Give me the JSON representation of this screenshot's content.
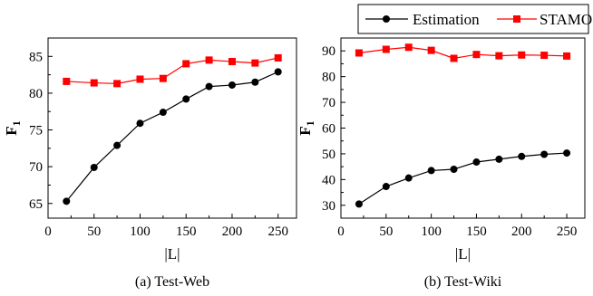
{
  "legend": {
    "entries": [
      {
        "name": "Estimation",
        "color": "#000000",
        "marker": "circle"
      },
      {
        "name": "STAMO",
        "color": "#ff0000",
        "marker": "square"
      }
    ],
    "placement": "top-right"
  },
  "chart_data": [
    {
      "type": "line",
      "title": "(a) Test-Web",
      "xlabel": "|L|",
      "ylabel": "F",
      "ylabel_subscript": "1",
      "xlim": [
        0,
        270
      ],
      "ylim": [
        63,
        87.5
      ],
      "xticks": [
        0,
        50,
        100,
        150,
        200,
        250
      ],
      "yticks": [
        65,
        70,
        75,
        80,
        85
      ],
      "x": [
        20,
        50,
        75,
        100,
        125,
        150,
        175,
        200,
        225,
        250
      ],
      "series": [
        {
          "name": "Estimation",
          "color": "#000000",
          "marker": "circle",
          "values": [
            65.3,
            69.9,
            72.9,
            75.9,
            77.4,
            79.2,
            80.9,
            81.1,
            81.5,
            82.9
          ]
        },
        {
          "name": "STAMO",
          "color": "#ff0000",
          "marker": "square",
          "values": [
            81.6,
            81.4,
            81.3,
            81.9,
            82.0,
            84.0,
            84.5,
            84.3,
            84.1,
            84.8
          ]
        }
      ],
      "grid": false
    },
    {
      "type": "line",
      "title": "(b) Test-Wiki",
      "xlabel": "|L|",
      "ylabel": "F",
      "ylabel_subscript": "1",
      "xlim": [
        0,
        270
      ],
      "ylim": [
        25,
        95
      ],
      "xticks": [
        0,
        50,
        100,
        150,
        200,
        250
      ],
      "yticks": [
        30,
        40,
        50,
        60,
        70,
        80,
        90
      ],
      "x": [
        20,
        50,
        75,
        100,
        125,
        150,
        175,
        200,
        225,
        250
      ],
      "series": [
        {
          "name": "Estimation",
          "color": "#000000",
          "marker": "circle",
          "values": [
            30.5,
            37.3,
            40.6,
            43.5,
            44.0,
            46.8,
            47.9,
            49.0,
            49.8,
            50.3
          ]
        },
        {
          "name": "STAMO",
          "color": "#ff0000",
          "marker": "square",
          "values": [
            89.2,
            90.6,
            91.4,
            90.2,
            87.1,
            88.6,
            88.1,
            88.4,
            88.3,
            88.0
          ]
        }
      ],
      "grid": false
    }
  ]
}
